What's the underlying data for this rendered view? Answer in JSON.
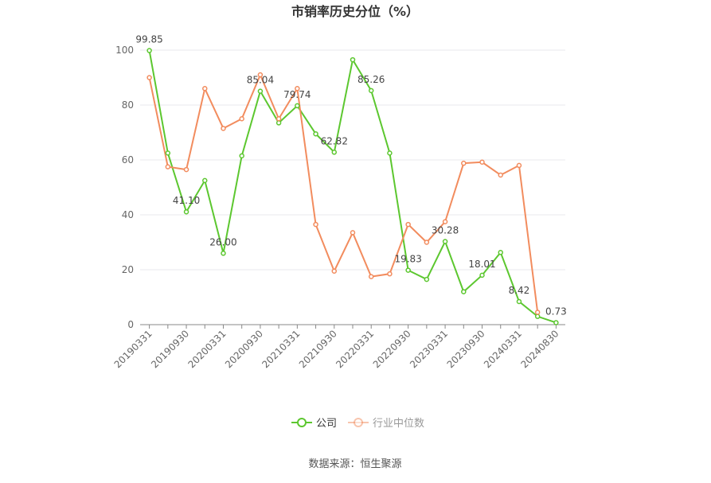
{
  "chart_data": {
    "type": "line",
    "title": "市销率历史分位（%）",
    "categories": [
      "20190331",
      null,
      "20190930",
      null,
      "20200331",
      null,
      "20200930",
      null,
      "20210331",
      null,
      "20210930",
      null,
      "20220331",
      null,
      "20220930",
      null,
      "20230331",
      null,
      "20230930",
      null,
      "20240331",
      null,
      "20240830"
    ],
    "series": [
      {
        "name": "公司",
        "color": "#5cc72f",
        "values": [
          99.85,
          62.5,
          41.1,
          52.5,
          26.0,
          61.5,
          85.04,
          73.5,
          79.74,
          69.5,
          62.82,
          96.5,
          85.26,
          62.5,
          19.83,
          16.5,
          30.28,
          12,
          18.01,
          26.3,
          8.42,
          3,
          0.73
        ],
        "value_labels": [
          "99.85",
          null,
          "41.10",
          null,
          "26.00",
          null,
          "85.04",
          null,
          "79.74",
          null,
          "62.82",
          null,
          "85.26",
          null,
          "19.83",
          null,
          "30.28",
          null,
          "18.01",
          null,
          "8.42",
          null,
          "0.73"
        ]
      },
      {
        "name": "行业中位数",
        "color": "#f28c5e",
        "values": [
          90,
          57.5,
          56.5,
          86,
          71.5,
          75,
          91,
          75,
          86,
          36.5,
          19.5,
          33.5,
          17.5,
          18.5,
          36.5,
          30,
          37.5,
          58.8,
          59.2,
          54.5,
          58,
          4.5,
          null
        ]
      }
    ],
    "ylim": [
      0,
      100
    ],
    "yticks": [
      0,
      20,
      40,
      60,
      80,
      100
    ],
    "grid": true,
    "source": "数据来源：恒生聚源"
  }
}
